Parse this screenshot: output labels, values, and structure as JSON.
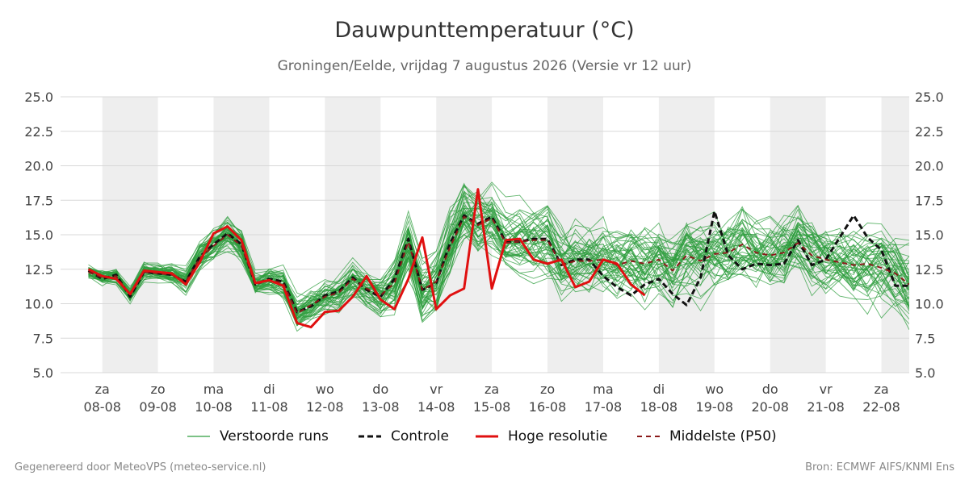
{
  "header": {
    "title": "Dauwpunttemperatuur (°C)",
    "subtitle": "Groningen/Eelde, vrijdag  7 augustus 2026 (Versie vr 12 uur)"
  },
  "footer": {
    "left": "Gegenereerd door MeteoVPS (meteo-service.nl)",
    "right": "Bron: ECMWF AIFS/KNMI Ens"
  },
  "colors": {
    "ensemble": "#2e9e3e",
    "control": "#111111",
    "high_res": "#e01010",
    "median": "#8b1a1a",
    "night_band": "#eeeeee",
    "grid": "#d8d8d8"
  },
  "legend": [
    {
      "key": "ensemble",
      "label": "Verstoorde runs"
    },
    {
      "key": "control",
      "label": "Controle"
    },
    {
      "key": "high_res",
      "label": "Hoge resolutie"
    },
    {
      "key": "median",
      "label": "Middelste (P50)"
    }
  ],
  "chart_data": {
    "type": "line",
    "title": "Dauwpunttemperatuur (°C)",
    "ylim": [
      5.0,
      25.0
    ],
    "yticks": [
      "5.0",
      "7.5",
      "10.0",
      "12.5",
      "15.0",
      "17.5",
      "20.0",
      "22.5",
      "25.0"
    ],
    "xlim_days": [
      -0.75,
      14.5
    ],
    "xticks": [
      {
        "day": "za",
        "date": "08-08"
      },
      {
        "day": "zo",
        "date": "09-08"
      },
      {
        "day": "ma",
        "date": "10-08"
      },
      {
        "day": "di",
        "date": "11-08"
      },
      {
        "day": "wo",
        "date": "12-08"
      },
      {
        "day": "do",
        "date": "13-08"
      },
      {
        "day": "vr",
        "date": "14-08"
      },
      {
        "day": "za",
        "date": "15-08"
      },
      {
        "day": "zo",
        "date": "16-08"
      },
      {
        "day": "ma",
        "date": "17-08"
      },
      {
        "day": "di",
        "date": "18-08"
      },
      {
        "day": "wo",
        "date": "19-08"
      },
      {
        "day": "do",
        "date": "20-08"
      },
      {
        "day": "vr",
        "date": "21-08"
      },
      {
        "day": "za",
        "date": "22-08"
      }
    ],
    "grid": true,
    "legend_position": "bottom",
    "series": [
      {
        "name": "Controle",
        "key": "control",
        "x": [
          -0.25,
          0,
          0.25,
          0.5,
          0.75,
          1,
          1.25,
          1.5,
          1.75,
          2,
          2.25,
          2.5,
          2.75,
          3,
          3.25,
          3.5,
          3.75,
          4,
          4.25,
          4.5,
          4.75,
          5,
          5.25,
          5.5,
          5.75,
          6,
          6.25,
          6.5,
          6.75,
          7,
          7.25,
          7.5,
          7.75,
          8,
          8.25,
          8.5,
          8.75,
          9,
          9.25,
          9.5,
          9.75,
          10,
          10.25,
          10.5,
          10.75,
          11,
          11.25,
          11.5,
          11.75,
          12,
          12.25,
          12.5,
          12.75,
          13,
          13.25,
          13.5,
          13.75,
          14,
          14.25,
          14.5
        ],
        "y": [
          12.4,
          11.8,
          12.1,
          10.5,
          12.3,
          12.2,
          12.1,
          11.6,
          13.4,
          14.3,
          15.1,
          14.3,
          11.4,
          11.8,
          11.6,
          9.4,
          9.8,
          10.6,
          10.9,
          11.9,
          11.0,
          10.5,
          11.8,
          14.7,
          11.0,
          11.5,
          14.4,
          16.4,
          15.8,
          16.3,
          14.5,
          14.5,
          14.7,
          14.7,
          12.8,
          13.2,
          13.2,
          12.0,
          11.2,
          10.6,
          11.4,
          11.8,
          10.7,
          9.9,
          11.9,
          16.7,
          13.5,
          12.5,
          12.9,
          12.8,
          12.9,
          14.6,
          12.8,
          13.2,
          14.8,
          16.4,
          14.8,
          13.9,
          11.3,
          11.3
        ]
      },
      {
        "name": "Hoge resolutie",
        "key": "high_res",
        "x": [
          -0.25,
          0,
          0.25,
          0.5,
          0.75,
          1,
          1.25,
          1.5,
          1.75,
          2,
          2.25,
          2.5,
          2.75,
          3,
          3.25,
          3.5,
          3.75,
          4,
          4.25,
          4.5,
          4.75,
          5,
          5.25,
          5.5,
          5.75,
          6,
          6.25,
          6.5,
          6.75,
          7,
          7.25,
          7.5,
          7.75,
          8,
          8.25,
          8.5,
          8.75,
          9,
          9.25,
          9.5,
          9.75
        ],
        "y": [
          12.5,
          12.0,
          11.8,
          10.7,
          12.4,
          12.3,
          12.2,
          11.4,
          13.0,
          15.1,
          15.6,
          14.6,
          11.5,
          11.7,
          11.3,
          8.6,
          8.3,
          9.4,
          9.5,
          10.5,
          12.0,
          10.3,
          9.6,
          11.8,
          14.8,
          9.6,
          10.6,
          11.1,
          18.3,
          11.1,
          14.6,
          14.7,
          13.2,
          12.9,
          13.2,
          11.2,
          11.6,
          13.2,
          12.9,
          11.4,
          10.6
        ]
      },
      {
        "name": "Middelste (P50)",
        "key": "median",
        "x": [
          -0.25,
          0,
          0.25,
          0.5,
          0.75,
          1,
          1.25,
          1.5,
          1.75,
          2,
          2.25,
          2.5,
          2.75,
          3,
          3.25,
          3.5,
          3.75,
          4,
          4.25,
          4.5,
          4.75,
          5,
          5.25,
          5.5,
          5.75,
          6,
          6.25,
          6.5,
          6.75,
          7,
          7.25,
          7.5,
          7.75,
          8,
          8.25,
          8.5,
          8.75,
          9,
          9.25,
          9.5,
          9.75,
          10,
          10.25,
          10.5,
          10.75,
          11,
          11.25,
          11.5,
          11.75,
          12,
          12.25,
          12.5,
          12.75,
          13,
          13.25,
          13.5,
          13.75,
          14,
          14.25,
          14.5
        ],
        "y": [
          12.3,
          11.9,
          12.0,
          10.6,
          12.3,
          12.2,
          12.1,
          11.6,
          13.3,
          14.2,
          15.0,
          14.2,
          11.4,
          11.7,
          11.5,
          9.3,
          9.9,
          10.5,
          10.8,
          11.8,
          11.1,
          10.6,
          11.5,
          14.5,
          11.0,
          11.6,
          14.1,
          16.3,
          15.7,
          16.2,
          14.4,
          14.5,
          14.6,
          14.6,
          12.8,
          13.1,
          13.1,
          13.2,
          12.8,
          13.1,
          12.9,
          13.2,
          12.4,
          13.5,
          13.1,
          13.6,
          13.7,
          14.3,
          13.7,
          13.5,
          13.7,
          14.4,
          13.5,
          13.2,
          13.0,
          12.8,
          12.9,
          12.6,
          12.2,
          11.4
        ]
      }
    ],
    "ensemble": {
      "name": "Verstoorde runs",
      "key": "ensemble",
      "member_count": 50,
      "x_start": -0.25,
      "x_step": 0.25,
      "center": [
        12.3,
        11.9,
        12.0,
        10.6,
        12.3,
        12.2,
        12.1,
        11.6,
        13.3,
        14.2,
        15.0,
        14.2,
        11.4,
        11.7,
        11.5,
        9.3,
        9.9,
        10.5,
        10.8,
        11.8,
        11.1,
        10.6,
        11.5,
        14.5,
        11.0,
        11.6,
        14.1,
        16.3,
        15.7,
        16.2,
        14.4,
        14.5,
        14.6,
        14.6,
        12.8,
        13.1,
        13.1,
        13.2,
        12.8,
        13.1,
        12.9,
        13.2,
        12.4,
        13.5,
        13.1,
        13.6,
        13.7,
        14.3,
        13.7,
        13.5,
        13.7,
        14.4,
        13.5,
        13.2,
        13.0,
        12.8,
        12.9,
        12.6,
        12.2,
        11.4
      ],
      "spread": [
        0.6,
        0.6,
        0.6,
        0.6,
        0.7,
        0.7,
        0.8,
        0.9,
        1.1,
        1.3,
        1.4,
        1.4,
        1.0,
        1.0,
        1.1,
        1.2,
        1.2,
        1.2,
        1.3,
        1.3,
        1.4,
        1.5,
        1.8,
        2.2,
        2.4,
        2.5,
        2.6,
        2.5,
        2.4,
        2.4,
        2.4,
        2.4,
        2.5,
        2.5,
        2.5,
        2.6,
        2.6,
        2.6,
        2.6,
        2.6,
        2.7,
        2.7,
        2.7,
        2.7,
        2.8,
        2.8,
        2.8,
        2.8,
        2.8,
        2.8,
        2.8,
        2.8,
        2.8,
        2.8,
        2.8,
        2.8,
        2.8,
        2.8,
        2.8,
        2.8
      ]
    }
  }
}
